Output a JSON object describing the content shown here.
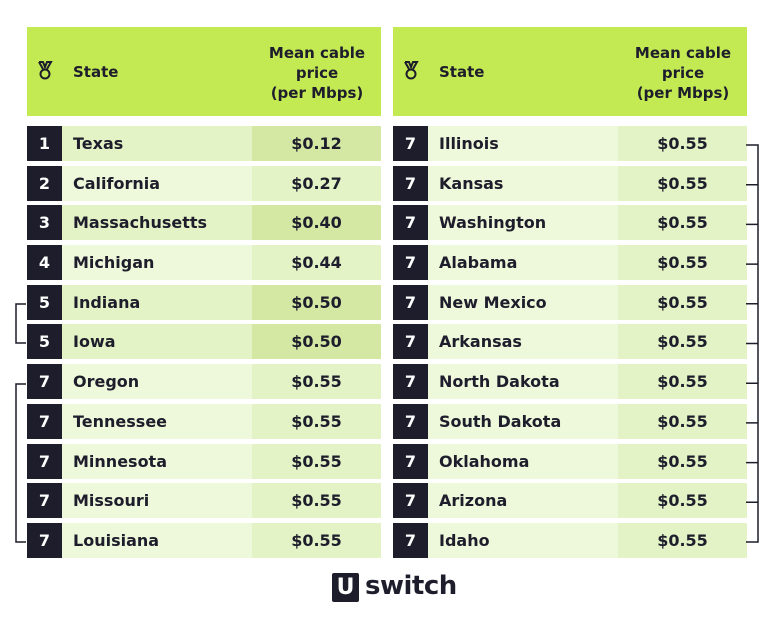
{
  "header": {
    "state_label": "State",
    "price_label": "Mean cable\nprice\n(per Mbps)"
  },
  "colors": {
    "header_bg": "#c4ea53",
    "rank_bg": "#1d1d2b",
    "row_light": "#eef8da",
    "row_mid": "#e4f3c6",
    "row_dark": "#d4e8a4"
  },
  "left_rows": [
    {
      "rank": "1",
      "state": "Texas",
      "price": "$0.12",
      "shade": "dark"
    },
    {
      "rank": "2",
      "state": "California",
      "price": "$0.27",
      "shade": "light"
    },
    {
      "rank": "3",
      "state": "Massachusetts",
      "price": "$0.40",
      "shade": "dark"
    },
    {
      "rank": "4",
      "state": "Michigan",
      "price": "$0.44",
      "shade": "light"
    },
    {
      "rank": "5",
      "state": "Indiana",
      "price": "$0.50",
      "shade": "dark"
    },
    {
      "rank": "5",
      "state": "Iowa",
      "price": "$0.50",
      "shade": "dark"
    },
    {
      "rank": "7",
      "state": "Oregon",
      "price": "$0.55",
      "shade": "light"
    },
    {
      "rank": "7",
      "state": "Tennessee",
      "price": "$0.55",
      "shade": "light"
    },
    {
      "rank": "7",
      "state": "Minnesota",
      "price": "$0.55",
      "shade": "light"
    },
    {
      "rank": "7",
      "state": "Missouri",
      "price": "$0.55",
      "shade": "light"
    },
    {
      "rank": "7",
      "state": "Louisiana",
      "price": "$0.55",
      "shade": "light"
    }
  ],
  "right_rows": [
    {
      "rank": "7",
      "state": "Illinois",
      "price": "$0.55",
      "shade": "light"
    },
    {
      "rank": "7",
      "state": "Kansas",
      "price": "$0.55",
      "shade": "light"
    },
    {
      "rank": "7",
      "state": "Washington",
      "price": "$0.55",
      "shade": "light"
    },
    {
      "rank": "7",
      "state": "Alabama",
      "price": "$0.55",
      "shade": "light"
    },
    {
      "rank": "7",
      "state": "New Mexico",
      "price": "$0.55",
      "shade": "light"
    },
    {
      "rank": "7",
      "state": "Arkansas",
      "price": "$0.55",
      "shade": "light"
    },
    {
      "rank": "7",
      "state": "North Dakota",
      "price": "$0.55",
      "shade": "light"
    },
    {
      "rank": "7",
      "state": "South Dakota",
      "price": "$0.55",
      "shade": "light"
    },
    {
      "rank": "7",
      "state": "Oklahoma",
      "price": "$0.55",
      "shade": "light"
    },
    {
      "rank": "7",
      "state": "Arizona",
      "price": "$0.55",
      "shade": "light"
    },
    {
      "rank": "7",
      "state": "Idaho",
      "price": "$0.55",
      "shade": "light"
    }
  ],
  "logo": {
    "mark": "U",
    "word": "switch"
  }
}
